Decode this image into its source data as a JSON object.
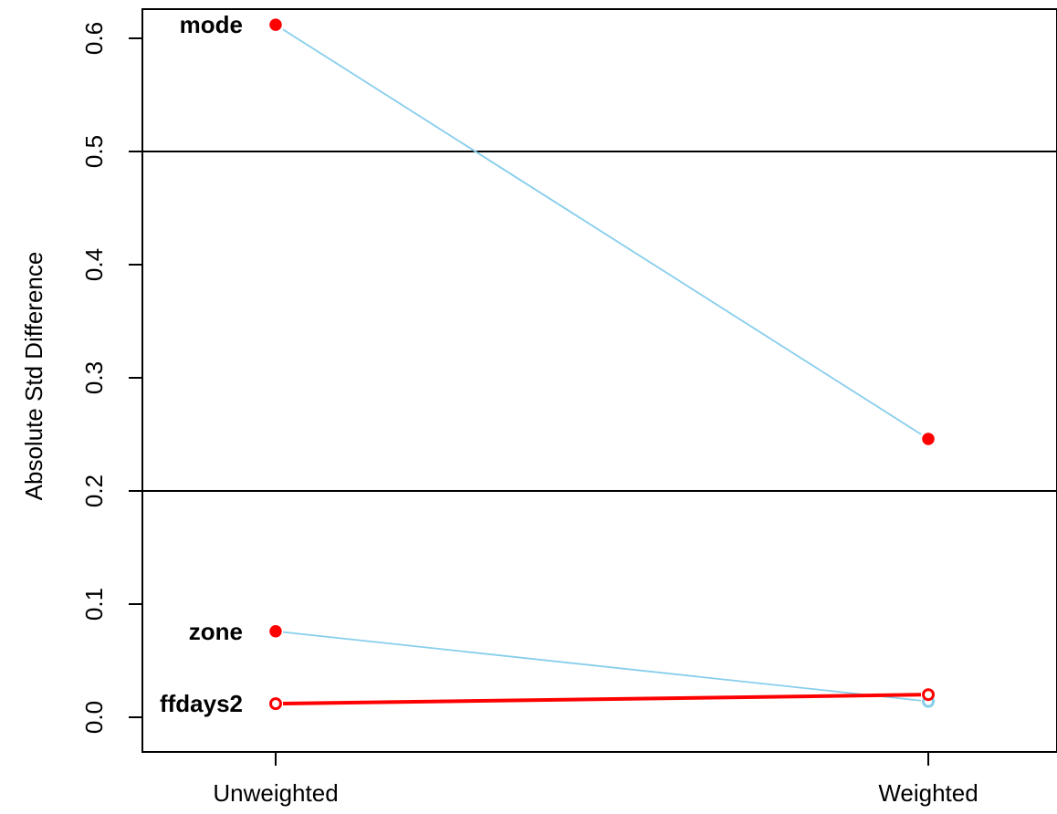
{
  "chart_data": {
    "type": "line",
    "title": "",
    "xlabel": "",
    "ylabel": "Absolute Std Difference",
    "categories": [
      "Unweighted",
      "Weighted"
    ],
    "ylim": [
      -0.025,
      0.625
    ],
    "yticks": [
      "0.0",
      "0.1",
      "0.2",
      "0.3",
      "0.4",
      "0.5",
      "0.6"
    ],
    "reference_lines": [
      0.2,
      0.5
    ],
    "grid": false,
    "series": [
      {
        "name": "mode",
        "values": [
          0.612,
          0.246
        ],
        "line_color": "#87CEEB",
        "point_color": "#FF0000",
        "filled": [
          true,
          true
        ],
        "emphasized": false
      },
      {
        "name": "zone",
        "values": [
          0.076,
          0.014
        ],
        "line_color": "#87CEEB",
        "point_color": "#FF0000",
        "filled": [
          true,
          false
        ],
        "emphasized": false
      },
      {
        "name": "ffdays2",
        "values": [
          0.012,
          0.02
        ],
        "line_color": "#FF0000",
        "point_color": "#FF0000",
        "filled": [
          false,
          false
        ],
        "emphasized": true
      }
    ]
  }
}
